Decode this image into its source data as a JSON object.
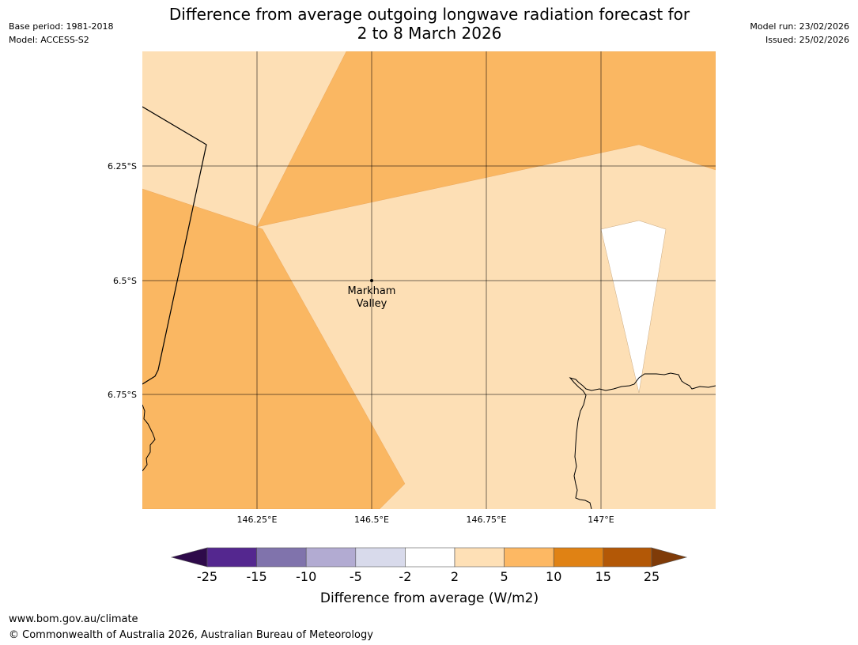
{
  "header": {
    "title_line1": "Difference from average outgoing longwave radiation forecast for",
    "title_line2": "2 to 8 March 2026",
    "base_period": "Base period: 1981-2018",
    "model": "Model: ACCESS-S2",
    "model_run": "Model run: 23/02/2026",
    "issued": "Issued: 25/02/2026"
  },
  "map": {
    "latitude_labels": [
      "6.25°S",
      "6.5°S",
      "6.75°S"
    ],
    "longitude_labels": [
      "146.25°E",
      "146.5°E",
      "146.75°E",
      "147°E"
    ],
    "place": {
      "name_line1": "Markham",
      "name_line2": "Valley"
    },
    "colors": {
      "light_orange": "#fddfb5",
      "mid_orange": "#fab762",
      "white": "#ffffff"
    }
  },
  "colorbar": {
    "title": "Difference from average (W/m2)",
    "ticks": [
      "-25",
      "-15",
      "-10",
      "-5",
      "-2",
      "2",
      "5",
      "10",
      "15",
      "25"
    ],
    "bins": [
      {
        "range": "< -25",
        "color": "#2e0a4a"
      },
      {
        "range": "-25 to -15",
        "color": "#54278f"
      },
      {
        "range": "-15 to -10",
        "color": "#8073ac"
      },
      {
        "range": "-10 to -5",
        "color": "#b2abd2"
      },
      {
        "range": "-5 to -2",
        "color": "#d8daeb"
      },
      {
        "range": "-2 to 2",
        "color": "#ffffff"
      },
      {
        "range": "2 to 5",
        "color": "#fee0b6"
      },
      {
        "range": "5 to 10",
        "color": "#fdb863"
      },
      {
        "range": "10 to 15",
        "color": "#e08214"
      },
      {
        "range": "15 to 25",
        "color": "#b35806"
      },
      {
        "range": "> 25",
        "color": "#7f3b08"
      }
    ]
  },
  "footer": {
    "url": "www.bom.gov.au/climate",
    "copyright": "© Commonwealth of Australia 2026, Australian Bureau of Meteorology"
  }
}
